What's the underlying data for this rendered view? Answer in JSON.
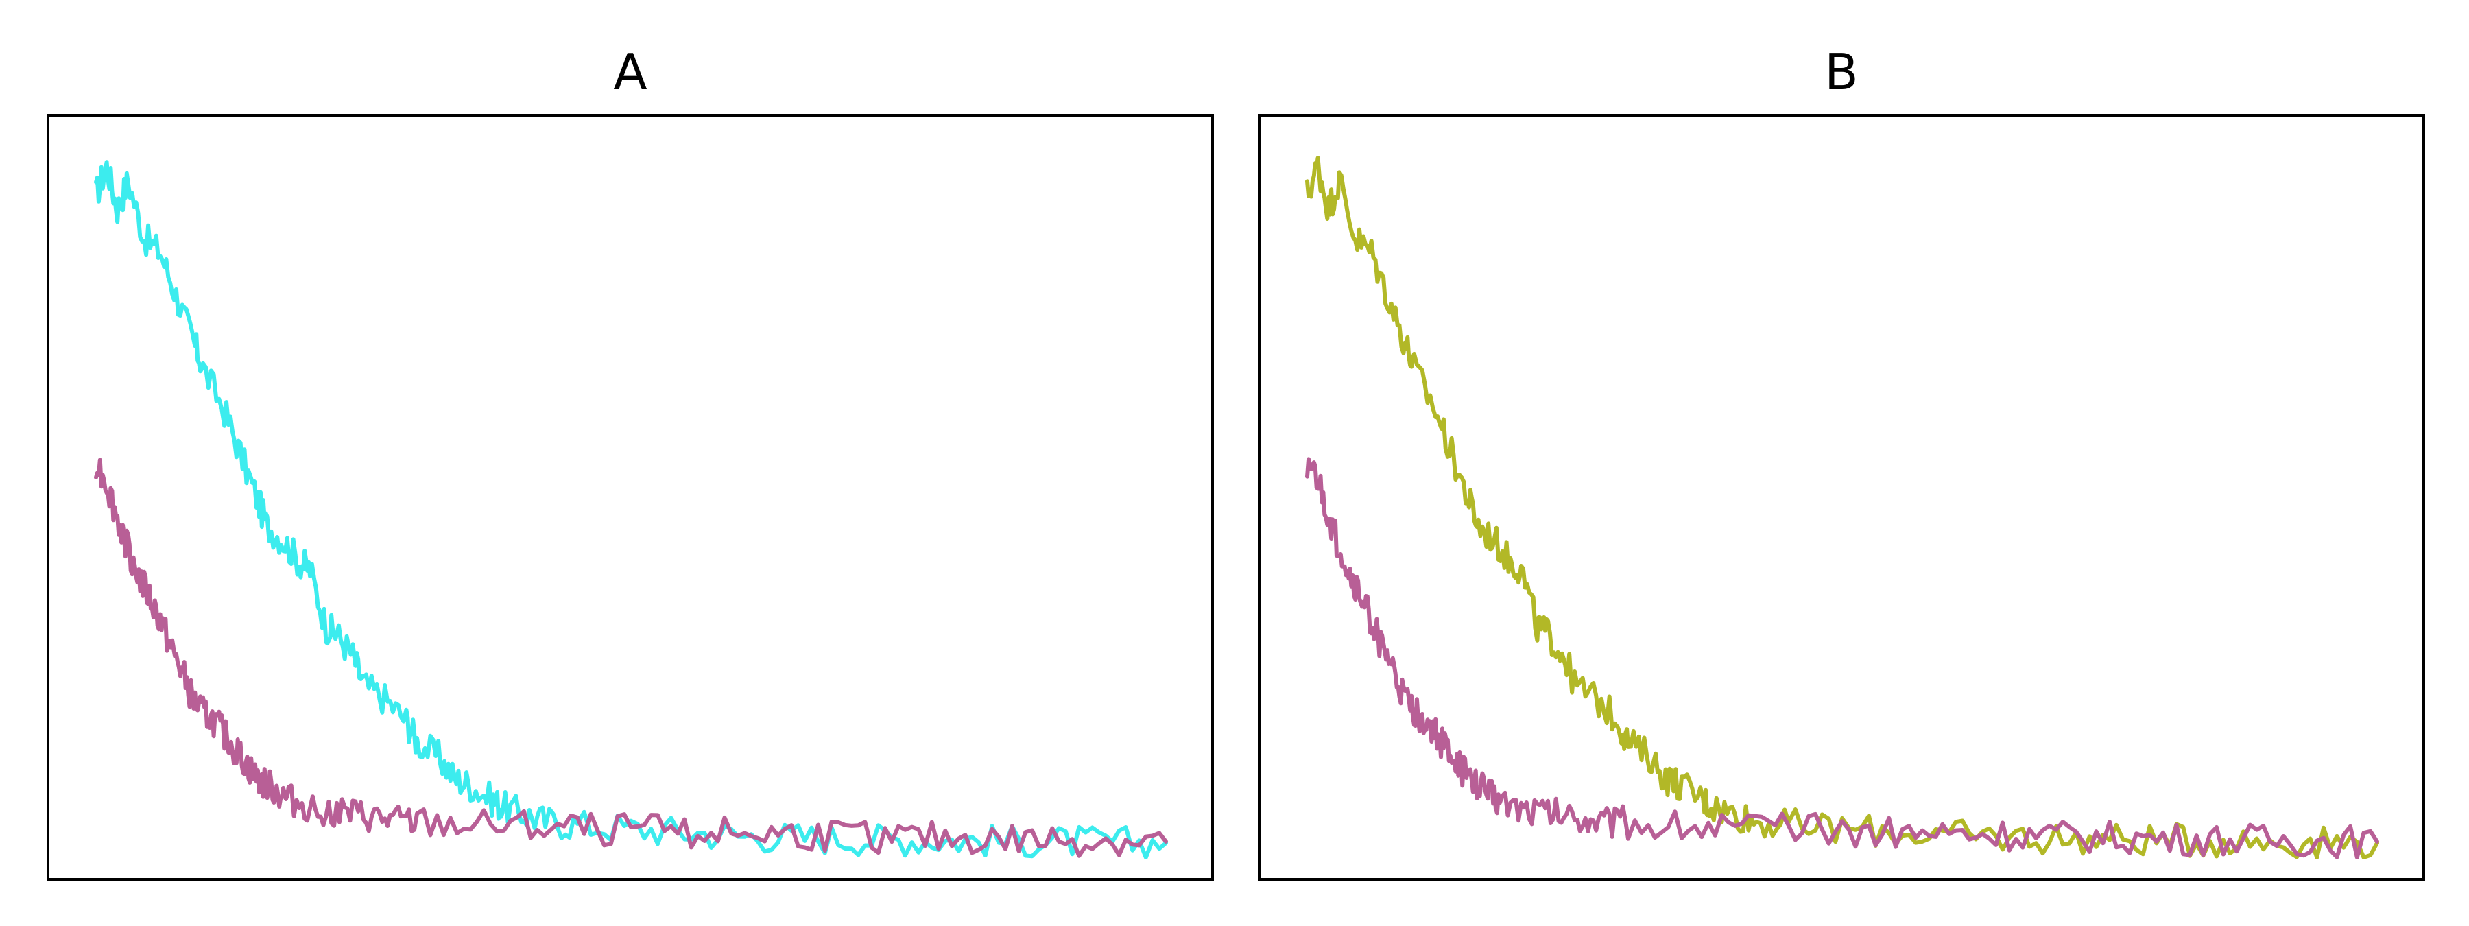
{
  "chart_data": [
    {
      "type": "line",
      "title": "A",
      "xlim": [
        0,
        1
      ],
      "ylim": [
        0,
        1
      ],
      "grid": false,
      "series": [
        {
          "color": "#3cecee",
          "points": [
            [
              0.0,
              0.92
            ],
            [
              0.01,
              0.96
            ],
            [
              0.02,
              0.9
            ],
            [
              0.03,
              0.94
            ],
            [
              0.045,
              0.86
            ],
            [
              0.06,
              0.84
            ],
            [
              0.075,
              0.78
            ],
            [
              0.09,
              0.72
            ],
            [
              0.1,
              0.68
            ],
            [
              0.12,
              0.62
            ],
            [
              0.135,
              0.56
            ],
            [
              0.15,
              0.5
            ],
            [
              0.16,
              0.46
            ],
            [
              0.175,
              0.44
            ],
            [
              0.19,
              0.41
            ],
            [
              0.2,
              0.4
            ],
            [
              0.215,
              0.32
            ],
            [
              0.225,
              0.31
            ],
            [
              0.24,
              0.28
            ],
            [
              0.25,
              0.24
            ],
            [
              0.27,
              0.22
            ],
            [
              0.29,
              0.19
            ],
            [
              0.3,
              0.16
            ],
            [
              0.32,
              0.14
            ],
            [
              0.335,
              0.11
            ],
            [
              0.35,
              0.1
            ],
            [
              0.37,
              0.08
            ],
            [
              0.38,
              0.07
            ],
            [
              0.4,
              0.06
            ],
            [
              0.42,
              0.05
            ],
            [
              0.45,
              0.045
            ],
            [
              0.5,
              0.04
            ],
            [
              0.55,
              0.035
            ],
            [
              0.6,
              0.03
            ],
            [
              0.65,
              0.028
            ],
            [
              0.7,
              0.026
            ],
            [
              0.75,
              0.025
            ],
            [
              0.8,
              0.024
            ],
            [
              0.85,
              0.023
            ],
            [
              0.9,
              0.022
            ],
            [
              0.95,
              0.021
            ],
            [
              1.0,
              0.02
            ]
          ]
        },
        {
          "color": "#b85f96",
          "points": [
            [
              0.0,
              0.55
            ],
            [
              0.01,
              0.52
            ],
            [
              0.02,
              0.47
            ],
            [
              0.03,
              0.43
            ],
            [
              0.04,
              0.39
            ],
            [
              0.05,
              0.36
            ],
            [
              0.06,
              0.33
            ],
            [
              0.07,
              0.29
            ],
            [
              0.08,
              0.26
            ],
            [
              0.09,
              0.22
            ],
            [
              0.1,
              0.2
            ],
            [
              0.11,
              0.19
            ],
            [
              0.12,
              0.17
            ],
            [
              0.13,
              0.15
            ],
            [
              0.14,
              0.13
            ],
            [
              0.15,
              0.11
            ],
            [
              0.16,
              0.1
            ],
            [
              0.17,
              0.09
            ],
            [
              0.18,
              0.08
            ],
            [
              0.2,
              0.07
            ],
            [
              0.22,
              0.065
            ],
            [
              0.24,
              0.06
            ],
            [
              0.26,
              0.055
            ],
            [
              0.28,
              0.05
            ],
            [
              0.3,
              0.048
            ],
            [
              0.35,
              0.045
            ],
            [
              0.4,
              0.042
            ],
            [
              0.45,
              0.04
            ],
            [
              0.5,
              0.038
            ],
            [
              0.55,
              0.036
            ],
            [
              0.6,
              0.034
            ],
            [
              0.65,
              0.032
            ],
            [
              0.7,
              0.03
            ],
            [
              0.75,
              0.028
            ],
            [
              0.8,
              0.026
            ],
            [
              0.85,
              0.025
            ],
            [
              0.9,
              0.024
            ],
            [
              0.95,
              0.023
            ],
            [
              1.0,
              0.022
            ]
          ]
        }
      ]
    },
    {
      "type": "line",
      "title": "B",
      "xlim": [
        0,
        1
      ],
      "ylim": [
        0,
        1
      ],
      "grid": false,
      "series": [
        {
          "color": "#b2b827",
          "points": [
            [
              0.0,
              0.92
            ],
            [
              0.01,
              0.96
            ],
            [
              0.02,
              0.9
            ],
            [
              0.03,
              0.94
            ],
            [
              0.045,
              0.86
            ],
            [
              0.06,
              0.84
            ],
            [
              0.075,
              0.78
            ],
            [
              0.09,
              0.72
            ],
            [
              0.1,
              0.68
            ],
            [
              0.12,
              0.62
            ],
            [
              0.135,
              0.56
            ],
            [
              0.15,
              0.5
            ],
            [
              0.16,
              0.46
            ],
            [
              0.175,
              0.44
            ],
            [
              0.19,
              0.41
            ],
            [
              0.2,
              0.4
            ],
            [
              0.215,
              0.32
            ],
            [
              0.225,
              0.31
            ],
            [
              0.24,
              0.28
            ],
            [
              0.25,
              0.24
            ],
            [
              0.27,
              0.22
            ],
            [
              0.29,
              0.19
            ],
            [
              0.3,
              0.16
            ],
            [
              0.32,
              0.14
            ],
            [
              0.335,
              0.11
            ],
            [
              0.35,
              0.1
            ],
            [
              0.37,
              0.08
            ],
            [
              0.38,
              0.07
            ],
            [
              0.4,
              0.06
            ],
            [
              0.42,
              0.05
            ],
            [
              0.45,
              0.045
            ],
            [
              0.5,
              0.04
            ],
            [
              0.55,
              0.035
            ],
            [
              0.6,
              0.03
            ],
            [
              0.65,
              0.028
            ],
            [
              0.7,
              0.026
            ],
            [
              0.75,
              0.025
            ],
            [
              0.8,
              0.024
            ],
            [
              0.85,
              0.023
            ],
            [
              0.9,
              0.022
            ],
            [
              0.95,
              0.021
            ],
            [
              1.0,
              0.02
            ]
          ]
        },
        {
          "color": "#b85f96",
          "points": [
            [
              0.0,
              0.55
            ],
            [
              0.01,
              0.52
            ],
            [
              0.02,
              0.47
            ],
            [
              0.03,
              0.43
            ],
            [
              0.04,
              0.39
            ],
            [
              0.05,
              0.36
            ],
            [
              0.06,
              0.33
            ],
            [
              0.07,
              0.29
            ],
            [
              0.08,
              0.26
            ],
            [
              0.09,
              0.22
            ],
            [
              0.1,
              0.2
            ],
            [
              0.11,
              0.19
            ],
            [
              0.12,
              0.17
            ],
            [
              0.13,
              0.15
            ],
            [
              0.14,
              0.13
            ],
            [
              0.15,
              0.11
            ],
            [
              0.16,
              0.1
            ],
            [
              0.17,
              0.09
            ],
            [
              0.18,
              0.08
            ],
            [
              0.2,
              0.07
            ],
            [
              0.22,
              0.065
            ],
            [
              0.24,
              0.06
            ],
            [
              0.26,
              0.055
            ],
            [
              0.28,
              0.05
            ],
            [
              0.3,
              0.048
            ],
            [
              0.35,
              0.045
            ],
            [
              0.4,
              0.042
            ],
            [
              0.45,
              0.04
            ],
            [
              0.5,
              0.038
            ],
            [
              0.55,
              0.036
            ],
            [
              0.6,
              0.034
            ],
            [
              0.65,
              0.032
            ],
            [
              0.7,
              0.03
            ],
            [
              0.75,
              0.028
            ],
            [
              0.8,
              0.026
            ],
            [
              0.85,
              0.025
            ],
            [
              0.9,
              0.024
            ],
            [
              0.95,
              0.023
            ],
            [
              1.0,
              0.022
            ]
          ]
        }
      ]
    }
  ]
}
